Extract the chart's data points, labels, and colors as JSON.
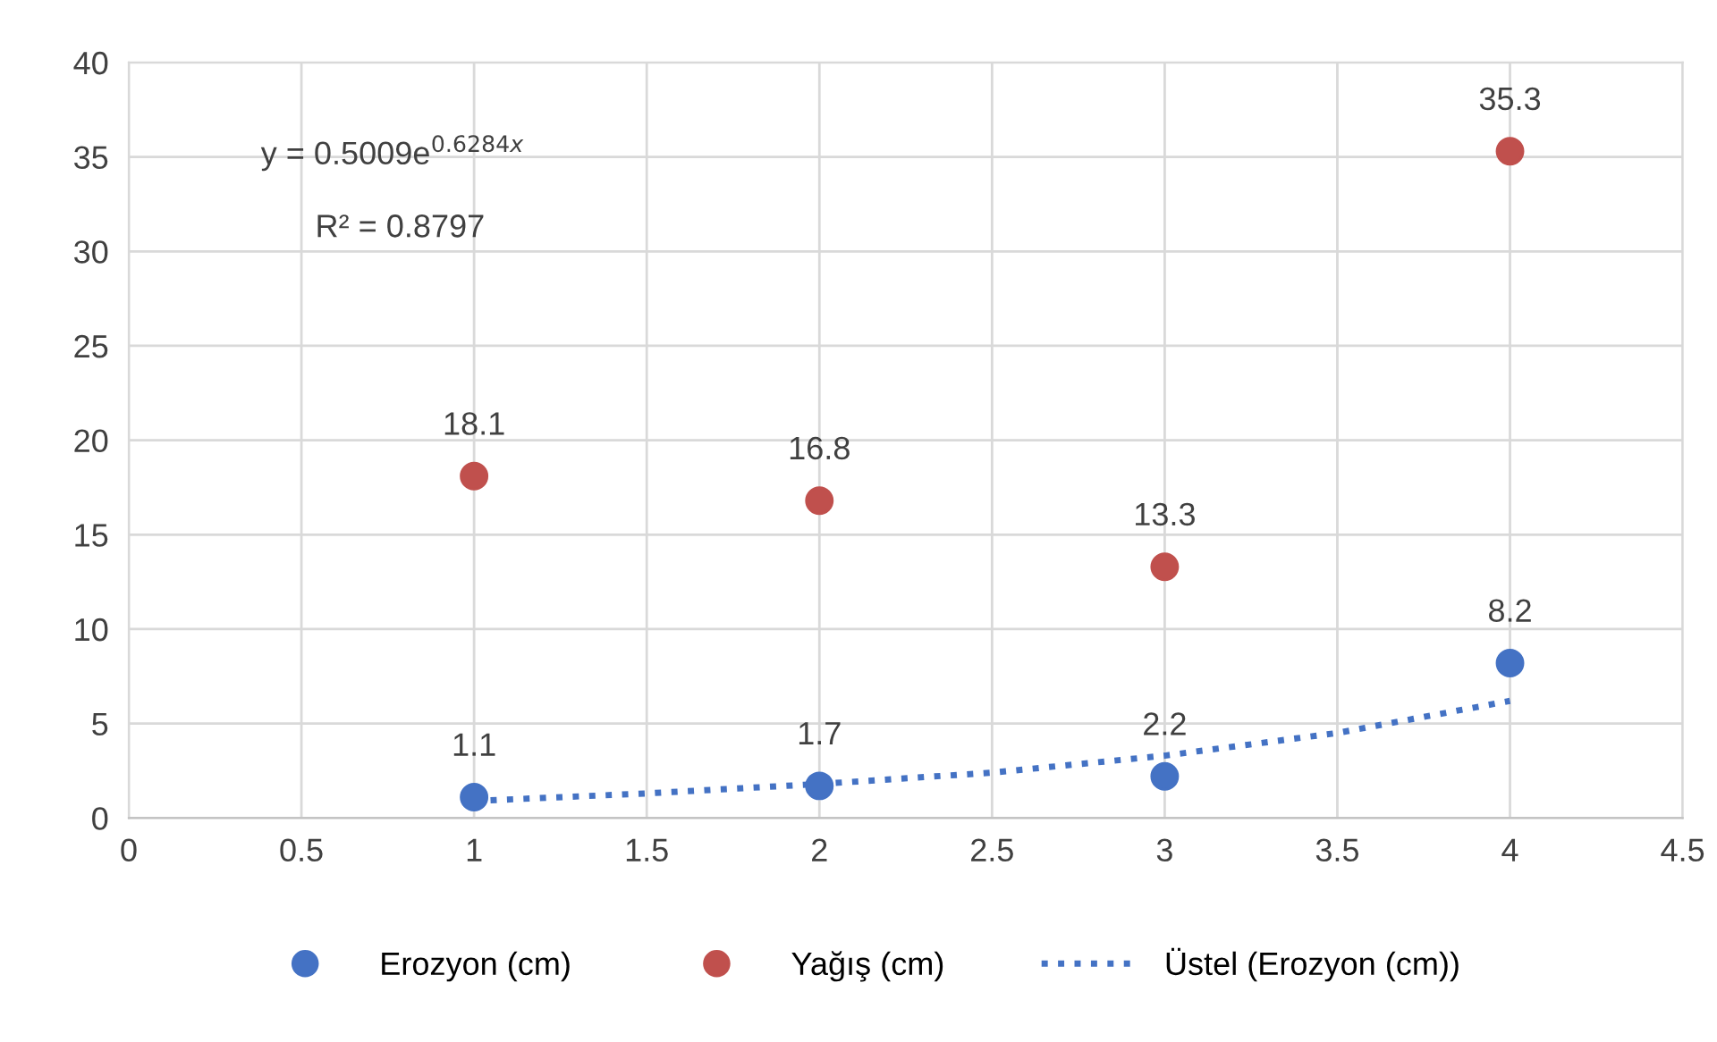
{
  "chart_data": {
    "type": "scatter",
    "xlim": [
      0,
      4.5
    ],
    "xticks": [
      0,
      0.5,
      1,
      1.5,
      2,
      2.5,
      3,
      3.5,
      4,
      4.5
    ],
    "ylim": [
      0,
      40
    ],
    "yticks": [
      0,
      5,
      10,
      15,
      20,
      25,
      30,
      35,
      40
    ],
    "grid": true,
    "legend": "bottom",
    "marker": "circle",
    "annotations": [
      "y = 0.5009e$^{0.6284x}$",
      "R² = 0.8797"
    ],
    "series": [
      {
        "name": "Erozyon (cm)",
        "color": "#4472c4",
        "x": [
          1,
          2,
          3,
          4
        ],
        "values": [
          1.1,
          1.7,
          2.2,
          8.2
        ],
        "value_labels": [
          "1.1",
          "1.7",
          "2.2",
          "8.2"
        ]
      },
      {
        "name": "Yağış (cm)",
        "color": "#c0504d",
        "x": [
          1,
          2,
          3,
          4
        ],
        "values": [
          18.1,
          16.8,
          13.3,
          35.3
        ],
        "value_labels": [
          "18.1",
          "16.8",
          "13.3",
          "35.3"
        ]
      },
      {
        "name": "Üstel (Erozyon (cm))",
        "type": "line",
        "line_style": "dotted",
        "marker": "none",
        "color": "#4472c4",
        "x": [
          1,
          1.5,
          2,
          2.5,
          3,
          3.5,
          4
        ],
        "values": [
          0.9,
          1.3,
          1.8,
          2.4,
          3.3,
          4.5,
          6.2
        ]
      }
    ]
  }
}
